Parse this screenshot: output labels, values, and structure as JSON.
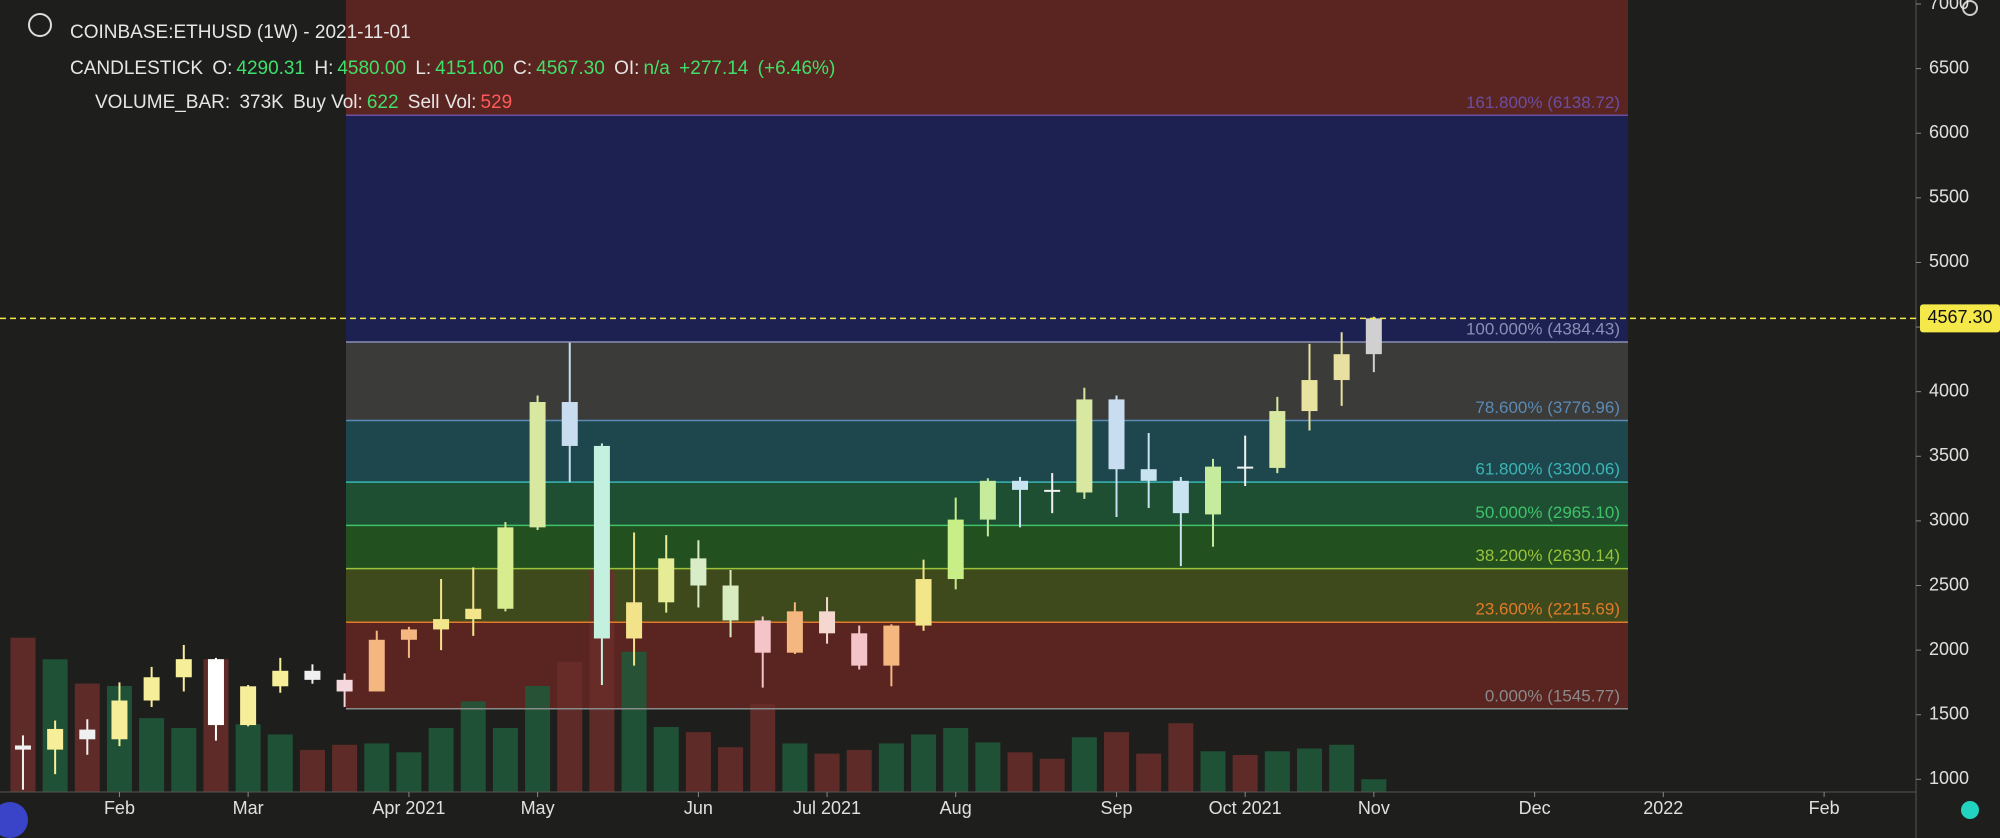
{
  "chart_data": {
    "type": "candlestick",
    "title": "COINBASE:ETHUSD (1W) - 2021-11-01",
    "legend": {
      "candlestick": {
        "name": "CANDLESTICK",
        "fields": [
          {
            "label": "O:",
            "value": "4290.31"
          },
          {
            "label": "H:",
            "value": "4580.00"
          },
          {
            "label": "L:",
            "value": "4151.00"
          },
          {
            "label": "C:",
            "value": "4567.30"
          }
        ],
        "oi_label": "OI:",
        "oi": "n/a",
        "change": "+277.14",
        "change_pct": "(+6.46%)"
      },
      "volume": {
        "name": "VOLUME_BAR:",
        "value": "373K",
        "buy_label": "Buy Vol:",
        "buy": "622",
        "sell_label": "Sell Vol:",
        "sell": "529"
      }
    },
    "x": [
      "2021-01-11",
      "2021-01-18",
      "2021-01-25",
      "2021-02-01",
      "2021-02-08",
      "2021-02-15",
      "2021-02-22",
      "2021-03-01",
      "2021-03-08",
      "2021-03-15",
      "2021-03-22",
      "2021-03-29",
      "2021-04-05",
      "2021-04-12",
      "2021-04-19",
      "2021-04-26",
      "2021-05-03",
      "2021-05-10",
      "2021-05-17",
      "2021-05-24",
      "2021-05-31",
      "2021-06-07",
      "2021-06-14",
      "2021-06-21",
      "2021-06-28",
      "2021-07-05",
      "2021-07-12",
      "2021-07-19",
      "2021-07-26",
      "2021-08-02",
      "2021-08-09",
      "2021-08-16",
      "2021-08-23",
      "2021-08-30",
      "2021-09-06",
      "2021-09-13",
      "2021-09-20",
      "2021-09-27",
      "2021-10-04",
      "2021-10-11",
      "2021-10-18",
      "2021-10-25",
      "2021-11-01"
    ],
    "open": [
      1262,
      1230,
      1385,
      1310,
      1610,
      1790,
      1930,
      1420,
      1720,
      1840,
      1770,
      1680,
      2080,
      2160,
      2240,
      2320,
      2950,
      3920,
      3580,
      2090,
      2370,
      2710,
      2500,
      2230,
      1980,
      2300,
      2130,
      1880,
      2190,
      2550,
      3010,
      3310,
      3240,
      3220,
      3940,
      3400,
      3310,
      3050,
      3420,
      3410,
      3850,
      4090,
      4290.31
    ],
    "high": [
      1340,
      1455,
      1465,
      1750,
      1870,
      2040,
      1940,
      1730,
      1940,
      1890,
      1820,
      2150,
      2180,
      2550,
      2640,
      2990,
      3970,
      4380,
      3600,
      2910,
      2890,
      2850,
      2620,
      2260,
      2370,
      2410,
      2190,
      2200,
      2700,
      3180,
      3330,
      3340,
      3370,
      4030,
      3970,
      3680,
      3340,
      3480,
      3660,
      3960,
      4370,
      4460,
      4580
    ],
    "low": [
      920,
      1040,
      1190,
      1257,
      1560,
      1680,
      1300,
      1410,
      1670,
      1740,
      1560,
      1680,
      1940,
      2000,
      2110,
      2300,
      2930,
      3300,
      1730,
      1880,
      2290,
      2330,
      2100,
      1710,
      1970,
      2050,
      1850,
      1720,
      2150,
      2470,
      2880,
      2950,
      3060,
      3170,
      3030,
      3100,
      2650,
      2800,
      3270,
      3370,
      3700,
      3890,
      4151
    ],
    "close": [
      1230,
      1390,
      1310,
      1610,
      1790,
      1930,
      1420,
      1720,
      1840,
      1770,
      1680,
      2080,
      2160,
      2240,
      2320,
      2950,
      3920,
      3580,
      2090,
      2370,
      2710,
      2500,
      2230,
      1980,
      2300,
      2130,
      1880,
      2190,
      2550,
      3010,
      3310,
      3240,
      3230,
      3940,
      3400,
      3310,
      3060,
      3420,
      3410,
      3850,
      4090,
      4290,
      4567.3
    ],
    "colors": [
      "#f0f0f0",
      "#f7ee9a",
      "#f0f0f0",
      "#f7ee9a",
      "#f7ee9a",
      "#f7ee9a",
      "#ffffff",
      "#f7ee9a",
      "#f7ee9a",
      "#f0f0f0",
      "#f5d8de",
      "#f4b780",
      "#f4b780",
      "#f2e58a",
      "#f2e58a",
      "#d6ec8e",
      "#d8e8a0",
      "#c8def0",
      "#c4f0e0",
      "#f2e28a",
      "#e6ec96",
      "#d8ecc8",
      "#d8ecc0",
      "#f4c4c8",
      "#f4b780",
      "#f4d8d0",
      "#f4c4c8",
      "#f4b780",
      "#f2e58a",
      "#c8ee88",
      "#c4ec9c",
      "#c8e4f0",
      "#f0f0f0",
      "#d8e8a0",
      "#c8def0",
      "#c8e4f0",
      "#c8e4f0",
      "#c4ec9c",
      "#f0f0f0",
      "#d8e8a0",
      "#e8e4a0",
      "#e8e0a0",
      "#d0d0d0"
    ],
    "volume": {
      "values": [
        4510000,
        3880000,
        3170000,
        3100000,
        2160000,
        1870000,
        3880000,
        1980000,
        1680000,
        1230000,
        1380000,
        1420000,
        1160000,
        1870000,
        2650000,
        1870000,
        3100000,
        3800000,
        6490000,
        4100000,
        1900000,
        1750000,
        1310000,
        2570000,
        1420000,
        1120000,
        1230000,
        1420000,
        1680000,
        1870000,
        1450000,
        1160000,
        970000,
        1600000,
        1750000,
        1120000,
        2010000,
        1190000,
        1080000,
        1190000,
        1270000,
        1380000,
        373000
      ],
      "colors": [
        "#6b2e2a",
        "#1f5a3a",
        "#6b2e2a",
        "#1f5a3a",
        "#1f5a3a",
        "#1f5a3a",
        "#6b2e2a",
        "#1f5a3a",
        "#1f5a3a",
        "#6b2e2a",
        "#6b2e2a",
        "#1f5a3a",
        "#1f5a3a",
        "#1f5a3a",
        "#1f5a3a",
        "#1f5a3a",
        "#1f5a3a",
        "#6b2e2a",
        "#6b2e2a",
        "#1f5a3a",
        "#1f5a3a",
        "#6b2e2a",
        "#6b2e2a",
        "#6b2e2a",
        "#1f5a3a",
        "#6b2e2a",
        "#6b2e2a",
        "#1f5a3a",
        "#1f5a3a",
        "#1f5a3a",
        "#1f5a3a",
        "#6b2e2a",
        "#6b2e2a",
        "#1f5a3a",
        "#6b2e2a",
        "#6b2e2a",
        "#6b2e2a",
        "#1f5a3a",
        "#6b2e2a",
        "#1f5a3a",
        "#1f5a3a",
        "#1f5a3a",
        "#1f5a3a"
      ]
    },
    "fib_levels": [
      {
        "label": "0.000% (1545.77)",
        "price": 1545.77,
        "color": "#8a8a8a",
        "fill": "#5a2420"
      },
      {
        "label": "23.600% (2215.69)",
        "price": 2215.69,
        "color": "#e07a2a",
        "fill": "#3f4a1c"
      },
      {
        "label": "38.200% (2630.14)",
        "price": 2630.14,
        "color": "#9ac23a",
        "fill": "#22501f"
      },
      {
        "label": "50.000% (2965.10)",
        "price": 2965.1,
        "color": "#3ec26a",
        "fill": "#1f4f33"
      },
      {
        "label": "61.800% (3300.06)",
        "price": 3300.06,
        "color": "#3ab5b5",
        "fill": "#1d474d"
      },
      {
        "label": "78.600% (3776.96)",
        "price": 3776.96,
        "color": "#5a8ab5",
        "fill": "#3b3b39"
      },
      {
        "label": "100.000% (4384.43)",
        "price": 4384.43,
        "color": "#8a8fb5",
        "fill": "#1c2152"
      },
      {
        "label": "161.800% (6138.72)",
        "price": 6138.72,
        "color": "#6a4fa0",
        "fill": "#5a2420"
      }
    ],
    "last_price": {
      "value": 4567.3,
      "label": "4567.30",
      "color": "#f5e94a"
    },
    "xlim": [
      "2021-01-06",
      "2022-02-27"
    ],
    "xticks": [
      {
        "value": "2021-02-01",
        "label": "Feb"
      },
      {
        "value": "2021-03-01",
        "label": "Mar"
      },
      {
        "value": "2021-04-05",
        "label": "Apr 2021"
      },
      {
        "value": "2021-05-03",
        "label": "May"
      },
      {
        "value": "2021-06-07",
        "label": "Jun"
      },
      {
        "value": "2021-07-05",
        "label": "Jul 2021"
      },
      {
        "value": "2021-08-02",
        "label": "Aug"
      },
      {
        "value": "2021-09-06",
        "label": "Sep"
      },
      {
        "value": "2021-10-04",
        "label": "Oct 2021"
      },
      {
        "value": "2021-11-01",
        "label": "Nov"
      },
      {
        "value": "2021-12-06",
        "label": "Dec"
      },
      {
        "value": "2022-01-03",
        "label": "2022"
      },
      {
        "value": "2022-02-07",
        "label": "Feb"
      }
    ],
    "ylim": [
      902,
      7031
    ],
    "yticks": [
      1000,
      1500,
      2000,
      2500,
      3000,
      3500,
      4000,
      4500,
      5000,
      5500,
      6000,
      6500,
      7000
    ]
  }
}
